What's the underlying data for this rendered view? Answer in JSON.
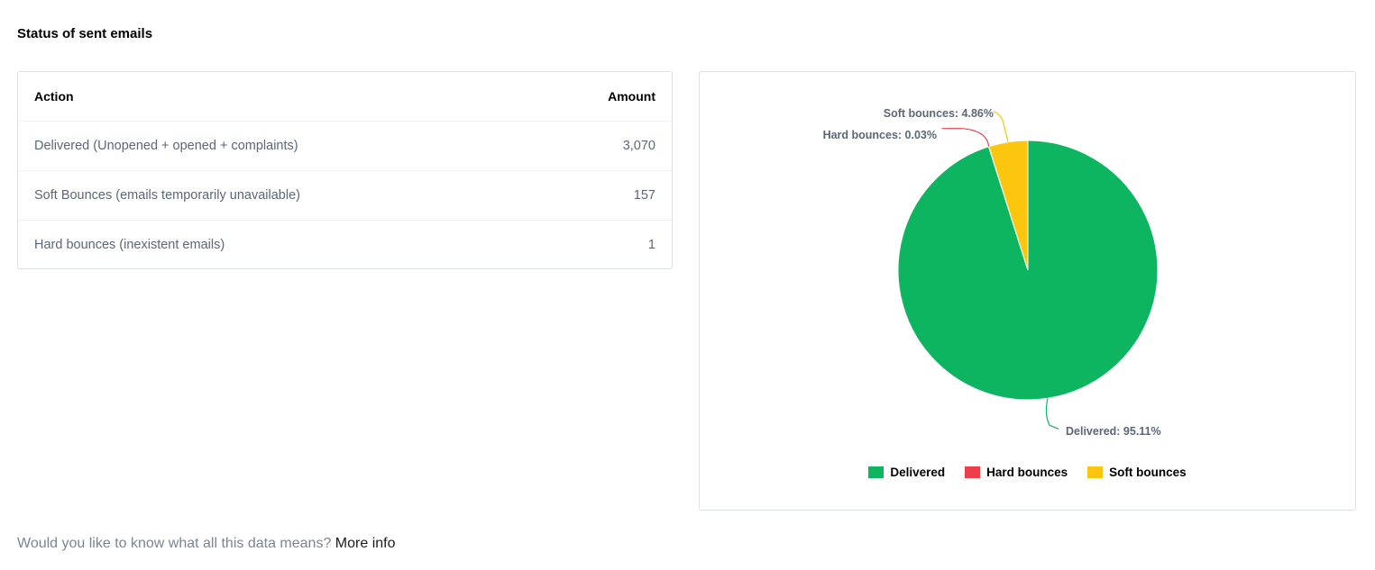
{
  "section_title": "Status of sent emails",
  "table": {
    "headers": {
      "action": "Action",
      "amount": "Amount"
    },
    "rows": [
      {
        "action": "Delivered (Unopened + opened + complaints)",
        "amount": "3,070"
      },
      {
        "action": "Soft Bounces (emails temporarily unavailable)",
        "amount": "157"
      },
      {
        "action": "Hard bounces (inexistent emails)",
        "amount": "1"
      }
    ]
  },
  "chart_data": {
    "type": "pie",
    "slices": [
      {
        "name": "Delivered",
        "value": 95.11,
        "label": "Delivered: 95.11%",
        "color": "#0db561"
      },
      {
        "name": "Hard bounces",
        "value": 0.03,
        "label": "Hard bounces: 0.03%",
        "color": "#ee3d4a"
      },
      {
        "name": "Soft bounces",
        "value": 4.86,
        "label": "Soft bounces: 4.86%",
        "color": "#fcc60e"
      }
    ],
    "legend": [
      "Delivered",
      "Hard bounces",
      "Soft bounces"
    ],
    "legend_position": "bottom"
  },
  "footer": {
    "text": "Would you like to know what all this data means?",
    "link": "More info"
  }
}
